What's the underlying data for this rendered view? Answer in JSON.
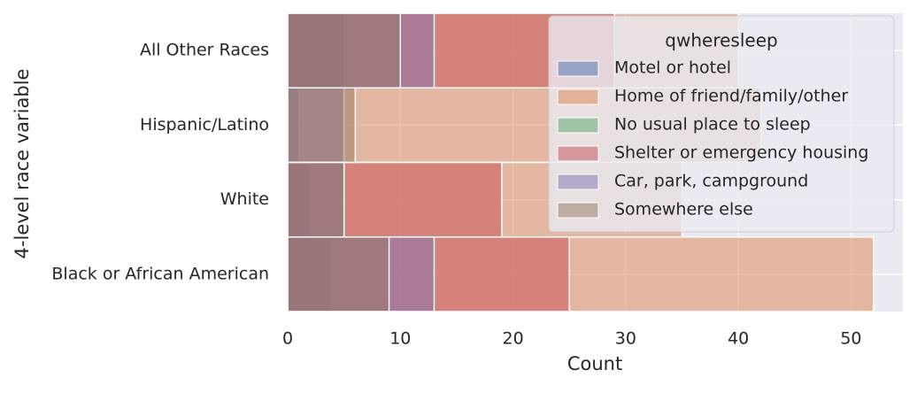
{
  "chart_data": {
    "type": "bar",
    "orientation": "horizontal",
    "layered": true,
    "xlabel": "Count",
    "ylabel": "4-level race variable",
    "categories": [
      "All Other Races",
      "Hispanic/Latino",
      "White",
      "Black or African American"
    ],
    "xlim": [
      0,
      54.6
    ],
    "xticks": [
      0,
      10,
      20,
      30,
      40,
      50
    ],
    "grid": true,
    "legend_title": "qwheresleep",
    "legend_position": "upper right",
    "series": [
      {
        "name": "Motel or hotel",
        "color": "#4c72b0",
        "values": [
          5,
          1,
          2,
          4
        ]
      },
      {
        "name": "Home of friend/family/other",
        "color": "#dd8452",
        "values": [
          40,
          42,
          35,
          52
        ]
      },
      {
        "name": "No usual place to sleep",
        "color": "#55a868",
        "values": [
          0,
          0,
          0,
          0
        ]
      },
      {
        "name": "Shelter or emergency housing",
        "color": "#c44e52",
        "values": [
          29,
          0,
          19,
          25
        ]
      },
      {
        "name": "Car, park, campground",
        "color": "#8172b3",
        "values": [
          13,
          5,
          5,
          13
        ]
      },
      {
        "name": "Somewhere else",
        "color": "#937860",
        "values": [
          10,
          6,
          5,
          9
        ]
      }
    ]
  }
}
